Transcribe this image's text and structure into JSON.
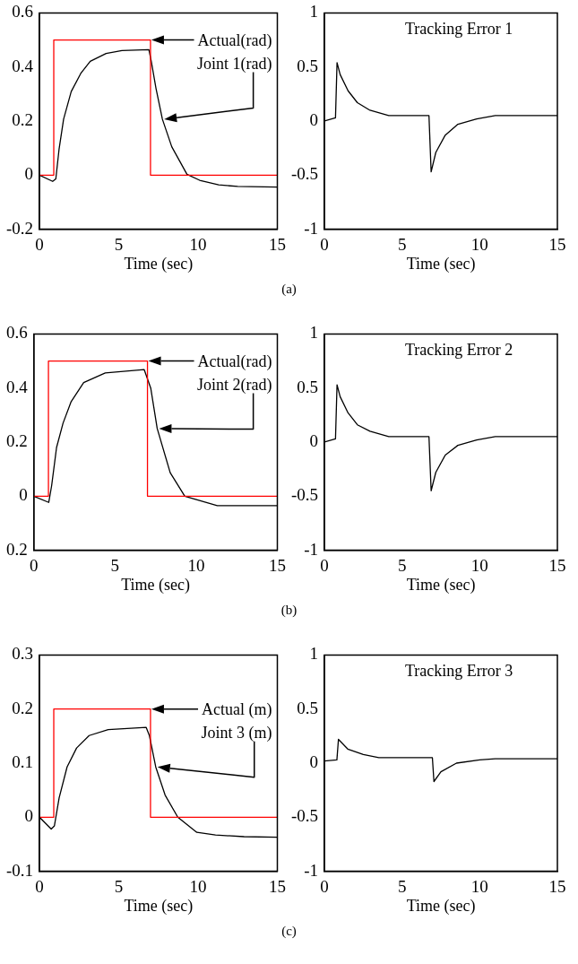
{
  "chart_data": [
    {
      "type": "line",
      "xlabel": "Time (sec)",
      "xlim": [
        0,
        15
      ],
      "xticks": [
        0,
        5,
        10,
        15
      ],
      "ylim": [
        -0.2,
        0.6
      ],
      "yticks": [
        -0.2,
        0,
        0.2,
        0.4,
        0.6
      ],
      "series": [
        {
          "type": "step",
          "color": "#ff0000",
          "x": [
            0,
            0.9,
            7,
            15
          ],
          "values": [
            0,
            0.5,
            0,
            0
          ]
        },
        {
          "type": "line",
          "color": "#000000",
          "x": [
            0,
            0.83,
            1.03,
            1.23,
            1.52,
            2.0,
            2.6,
            3.2,
            4.2,
            5.2,
            6.9,
            7.05,
            7.35,
            7.75,
            8.34,
            9.3,
            10.1,
            11.3,
            12.5,
            15
          ],
          "values": [
            0,
            -0.023,
            -0.014,
            0.094,
            0.207,
            0.309,
            0.376,
            0.421,
            0.45,
            0.461,
            0.464,
            0.421,
            0.32,
            0.207,
            0.105,
            0.003,
            -0.019,
            -0.036,
            -0.042,
            -0.044
          ]
        }
      ],
      "annotations": [
        "Actual(rad)",
        "Joint 1(rad)",
        "(a)"
      ]
    },
    {
      "type": "line",
      "title": "Tracking Error 1",
      "xlabel": "Time (sec)",
      "xlim": [
        0,
        15
      ],
      "xticks": [
        0,
        5,
        10,
        15
      ],
      "ylim": [
        -1,
        1
      ],
      "yticks": [
        -1,
        -0.5,
        0,
        0.5,
        1
      ],
      "series": [
        {
          "type": "line",
          "color": "#000000",
          "x": [
            0,
            0.71,
            0.81,
            1.01,
            1.52,
            2.12,
            2.93,
            4.14,
            6.73,
            6.87,
            7.17,
            7.78,
            8.59,
            9.8,
            11,
            15
          ],
          "values": [
            0,
            0.03,
            0.54,
            0.43,
            0.28,
            0.17,
            0.1,
            0.05,
            0.05,
            -0.47,
            -0.29,
            -0.13,
            -0.03,
            0.02,
            0.05,
            0.05
          ]
        }
      ]
    },
    {
      "type": "line",
      "xlabel": "Time (sec)",
      "xlim": [
        0,
        15
      ],
      "xticks": [
        0,
        5,
        10,
        15
      ],
      "ylim": [
        -0.2,
        0.6
      ],
      "yticks": [
        {
          "value": -0.2,
          "label": "0.2"
        },
        0,
        0.2,
        0.4,
        0.6
      ],
      "series": [
        {
          "type": "step",
          "color": "#ff0000",
          "x": [
            0,
            0.9,
            7,
            15
          ],
          "values": [
            0,
            0.5,
            0,
            0
          ]
        },
        {
          "type": "line",
          "color": "#000000",
          "x": [
            0,
            0.92,
            1.1,
            1.4,
            1.8,
            2.3,
            3.07,
            4.4,
            6.8,
            7.2,
            7.6,
            8.4,
            9.3,
            11.3,
            15
          ],
          "values": [
            0,
            -0.023,
            0.04,
            0.18,
            0.27,
            0.35,
            0.42,
            0.456,
            0.468,
            0.4,
            0.25,
            0.087,
            0,
            -0.035,
            -0.035
          ]
        }
      ],
      "annotations": [
        "Actual(rad)",
        "Joint 2(rad)",
        "(b)"
      ]
    },
    {
      "type": "line",
      "title": "Tracking Error 2",
      "xlabel": "Time (sec)",
      "xlim": [
        0,
        15
      ],
      "xticks": [
        0,
        5,
        10,
        15
      ],
      "ylim": [
        -1,
        1
      ],
      "yticks": [
        -1,
        -0.5,
        0,
        0.5,
        1
      ],
      "series": [
        {
          "type": "line",
          "color": "#000000",
          "x": [
            0,
            0.71,
            0.81,
            1.01,
            1.52,
            2.12,
            2.93,
            4.14,
            6.73,
            6.87,
            7.17,
            7.78,
            8.59,
            9.8,
            11,
            15
          ],
          "values": [
            0,
            0.03,
            0.53,
            0.42,
            0.27,
            0.16,
            0.1,
            0.05,
            0.05,
            -0.45,
            -0.28,
            -0.12,
            -0.03,
            0.02,
            0.05,
            0.05
          ]
        }
      ]
    },
    {
      "type": "line",
      "xlabel": "Time (sec)",
      "xlim": [
        0,
        15
      ],
      "xticks": [
        0,
        5,
        10,
        15
      ],
      "ylim": [
        -0.1,
        0.3
      ],
      "yticks": [
        -0.1,
        0,
        0.1,
        0.2,
        0.3
      ],
      "series": [
        {
          "type": "step",
          "color": "#ff0000",
          "x": [
            0,
            0.9,
            7,
            15
          ],
          "values": [
            0,
            0.2,
            0,
            0
          ]
        },
        {
          "type": "line",
          "color": "#000000",
          "x": [
            0,
            0.74,
            0.94,
            1.24,
            1.74,
            2.34,
            3.13,
            4.33,
            6.73,
            6.93,
            7.33,
            7.92,
            8.72,
            9.92,
            11.1,
            12.9,
            15
          ],
          "values": [
            0,
            -0.022,
            -0.016,
            0.036,
            0.093,
            0.128,
            0.151,
            0.162,
            0.166,
            0.151,
            0.093,
            0.041,
            0,
            -0.028,
            -0.033,
            -0.036,
            -0.037
          ]
        }
      ],
      "annotations": [
        "Actual (m)",
        "Joint 3 (m)",
        "(c)"
      ]
    },
    {
      "type": "line",
      "title": "Tracking Error 3",
      "xlabel": "Time (sec)",
      "xlim": [
        0,
        15
      ],
      "xticks": [
        0,
        5,
        10,
        15
      ],
      "ylim": [
        -1,
        1
      ],
      "yticks": [
        -1,
        -0.5,
        0,
        0.5,
        1
      ],
      "series": [
        {
          "type": "line",
          "color": "#000000",
          "x": [
            0,
            0.8,
            0.9,
            1.5,
            2.5,
            3.5,
            6.95,
            7.05,
            7.5,
            8.5,
            10,
            11,
            15
          ],
          "values": [
            0.02,
            0.03,
            0.22,
            0.13,
            0.08,
            0.05,
            0.05,
            -0.17,
            -0.08,
            0,
            0.03,
            0.04,
            0.04
          ]
        }
      ]
    }
  ]
}
